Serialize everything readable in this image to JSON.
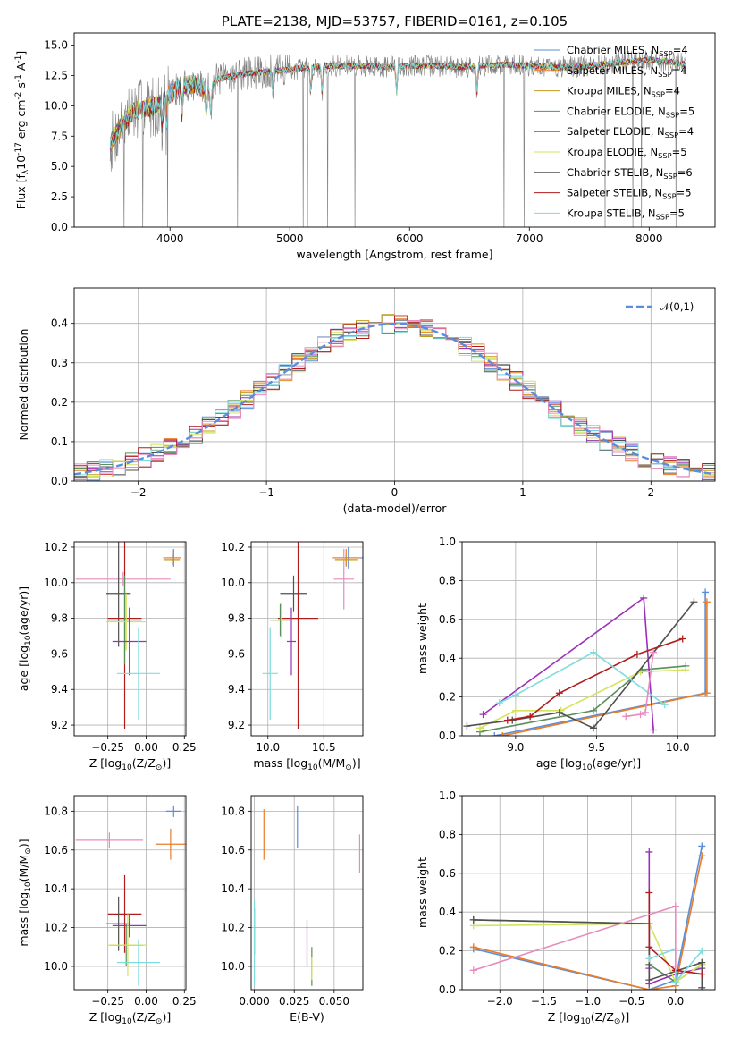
{
  "chart_data": [
    {
      "id": "spectrum",
      "type": "line",
      "title": "PLATE=2138, MJD=53757, FIBERID=0161, z=0.105",
      "xlabel": "wavelength [Angstrom, rest frame]",
      "ylabel": "Flux [f$_\\lambda$10$^{-17}$ erg cm$^{-2}$ s$^{-1}$ A$^{-1}$]",
      "xlim": [
        3200,
        8550
      ],
      "ylim": [
        0,
        16
      ],
      "xticks": [
        4000,
        5000,
        6000,
        7000,
        8000
      ],
      "yticks": [
        0.0,
        2.5,
        5.0,
        7.5,
        10.0,
        12.5,
        15.0
      ],
      "grid": false,
      "legend_position": "right",
      "continuum_profile": {
        "x": [
          3500,
          3600,
          3700,
          3800,
          3900,
          4000,
          4100,
          4200,
          4300,
          4400,
          4600,
          4800,
          5000,
          5200,
          5400,
          5600,
          5800,
          6000,
          6200,
          6400,
          6600,
          6800,
          7000,
          7200,
          7400,
          7600,
          7800,
          8000,
          8200,
          8300
        ],
        "y": [
          6.8,
          8.5,
          9.6,
          9.8,
          10.1,
          11.0,
          11.6,
          11.8,
          11.3,
          12.2,
          12.6,
          12.8,
          13.0,
          13.2,
          13.3,
          13.3,
          13.2,
          13.3,
          13.3,
          13.2,
          13.3,
          13.4,
          13.3,
          13.2,
          13.2,
          13.4,
          13.6,
          13.8,
          13.6,
          13.4
        ]
      },
      "data_range": [
        3500,
        8300
      ],
      "series": [
        {
          "name": "Chabrier MILES, N$_{SSP}$=4",
          "color": "#5b8ddb"
        },
        {
          "name": "Salpeter MILES, N$_{SSP}$=4",
          "color": "#e87d2a"
        },
        {
          "name": "Kroupa MILES, N$_{SSP}$=4",
          "color": "#c39a1c"
        },
        {
          "name": "Chabrier ELODIE, N$_{SSP}$=5",
          "color": "#5a8f5a"
        },
        {
          "name": "Salpeter ELODIE, N$_{SSP}$=4",
          "color": "#9b30b8"
        },
        {
          "name": "Kroupa ELODIE, N$_{SSP}$=5",
          "color": "#d4e35c"
        },
        {
          "name": "Chabrier STELIB, N$_{SSP}$=6",
          "color": "#505050"
        },
        {
          "name": "Salpeter STELIB, N$_{SSP}$=5",
          "color": "#b01c1c"
        },
        {
          "name": "Kroupa STELIB, N$_{SSP}$=5",
          "color": "#7fdcdc"
        }
      ],
      "data_color": "#808080"
    },
    {
      "id": "residuals",
      "type": "line",
      "xlabel": "(data-model)/error",
      "ylabel": "Normed distribution",
      "xlim": [
        -2.5,
        2.5
      ],
      "ylim": [
        0,
        0.49
      ],
      "xticks": [
        -2,
        -1,
        0,
        1,
        2
      ],
      "yticks": [
        0.0,
        0.1,
        0.2,
        0.3,
        0.4
      ],
      "grid": true,
      "legend_position": "top-right",
      "legend": "$\\mathcal{N}(0,1)$",
      "gaussian_color": "#5b8ddb",
      "bin_width": 0.1,
      "histogram_colors": [
        "#5b8ddb",
        "#e87d2a",
        "#c39a1c",
        "#5a8f5a",
        "#9b30b8",
        "#d4e35c",
        "#505050",
        "#b01c1c",
        "#7fdcdc",
        "#e88bc0"
      ]
    },
    {
      "id": "age_vs_Z",
      "type": "scatter",
      "xlabel": "Z [log$_{10}$(Z/Z$_\\odot$)]",
      "ylabel": "age  [log$_{10}$(age/yr)]",
      "xlim": [
        -0.47,
        0.26
      ],
      "ylim": [
        9.14,
        10.23
      ],
      "xticks": [
        -0.25,
        0.0,
        0.25
      ],
      "yticks": [
        9.2,
        9.4,
        9.6,
        9.8,
        10.0,
        10.2
      ],
      "grid": true,
      "points": [
        {
          "x": 0.18,
          "y": 10.14,
          "xerr": 0.05,
          "yerr": 0.05,
          "color": "#5b8ddb"
        },
        {
          "x": 0.17,
          "y": 10.14,
          "xerr": 0.06,
          "yerr": 0.04,
          "color": "#e87d2a"
        },
        {
          "x": 0.17,
          "y": 10.13,
          "xerr": 0.05,
          "yerr": 0.03,
          "color": "#c39a1c"
        },
        {
          "x": -0.15,
          "y": 10.02,
          "xerr": 0.31,
          "yerr": 0.04,
          "color": "#e88bc0"
        },
        {
          "x": -0.18,
          "y": 9.94,
          "xerr": 0.08,
          "yerr": 0.3,
          "color": "#505050"
        },
        {
          "x": -0.14,
          "y": 9.8,
          "xerr": 0.11,
          "yerr": 0.62,
          "color": "#b01c1c"
        },
        {
          "x": -0.14,
          "y": 9.79,
          "xerr": 0.11,
          "yerr": 0.25,
          "color": "#5a8f5a"
        },
        {
          "x": -0.13,
          "y": 9.78,
          "xerr": 0.13,
          "yerr": 0.16,
          "color": "#d4e35c"
        },
        {
          "x": -0.11,
          "y": 9.67,
          "xerr": 0.11,
          "yerr": 0.19,
          "color": "#9b30b8"
        },
        {
          "x": -0.05,
          "y": 9.49,
          "xerr": 0.14,
          "yerr": 0.26,
          "color": "#7fdcdc"
        }
      ]
    },
    {
      "id": "age_vs_mass",
      "type": "scatter",
      "xlabel": "mass [log$_{10}$(M/M$_\\odot$)]",
      "ylabel": "",
      "xlim": [
        9.85,
        10.85
      ],
      "ylim": [
        9.14,
        10.23
      ],
      "xticks": [
        10.0,
        10.5
      ],
      "yticks": [
        9.2,
        9.4,
        9.6,
        9.8,
        10.0,
        10.2
      ],
      "grid": true,
      "points": [
        {
          "x": 10.72,
          "y": 10.14,
          "xerr": 0.13,
          "yerr": 0.06,
          "color": "#5b8ddb"
        },
        {
          "x": 10.7,
          "y": 10.14,
          "xerr": 0.12,
          "yerr": 0.05,
          "color": "#e87d2a"
        },
        {
          "x": 10.7,
          "y": 10.13,
          "xerr": 0.1,
          "yerr": 0.03,
          "color": "#c39a1c"
        },
        {
          "x": 10.68,
          "y": 10.02,
          "xerr": 0.09,
          "yerr": 0.17,
          "color": "#e88bc0"
        },
        {
          "x": 10.23,
          "y": 9.94,
          "xerr": 0.12,
          "yerr": 0.1,
          "color": "#505050"
        },
        {
          "x": 10.27,
          "y": 9.8,
          "xerr": 0.18,
          "yerr": 0.62,
          "color": "#b01c1c"
        },
        {
          "x": 10.11,
          "y": 9.79,
          "xerr": 0.09,
          "yerr": 0.09,
          "color": "#5a8f5a"
        },
        {
          "x": 10.12,
          "y": 9.79,
          "xerr": 0.07,
          "yerr": 0.1,
          "color": "#d4e35c"
        },
        {
          "x": 10.21,
          "y": 9.67,
          "xerr": 0.04,
          "yerr": 0.19,
          "color": "#9b30b8"
        },
        {
          "x": 10.02,
          "y": 9.49,
          "xerr": 0.07,
          "yerr": 0.26,
          "color": "#7fdcdc"
        }
      ]
    },
    {
      "id": "weight_vs_age",
      "type": "line",
      "xlabel": "age  [log$_{10}$(age/yr)]",
      "ylabel": "mass weight",
      "xlim": [
        8.67,
        10.23
      ],
      "ylim": [
        0,
        1
      ],
      "xticks": [
        9.0,
        9.5,
        10.0
      ],
      "yticks": [
        0.0,
        0.2,
        0.4,
        0.6,
        0.8,
        1.0
      ],
      "grid": true,
      "series": [
        {
          "color": "#5b8ddb",
          "x": [
            8.87,
            10.17,
            10.17
          ],
          "y": [
            0.0,
            0.22,
            0.74
          ]
        },
        {
          "color": "#e87d2a",
          "x": [
            8.92,
            10.18,
            10.18
          ],
          "y": [
            0.0,
            0.22,
            0.69
          ]
        },
        {
          "color": "#5a8f5a",
          "x": [
            8.78,
            9.48,
            9.78,
            10.05
          ],
          "y": [
            0.02,
            0.13,
            0.34,
            0.36
          ]
        },
        {
          "color": "#9b30b8",
          "x": [
            8.8,
            9.79,
            9.85
          ],
          "y": [
            0.11,
            0.71,
            0.03
          ]
        },
        {
          "color": "#d4e35c",
          "x": [
            8.78,
            9.0,
            9.28,
            9.77,
            10.05
          ],
          "y": [
            0.04,
            0.13,
            0.13,
            0.33,
            0.34
          ]
        },
        {
          "color": "#505050",
          "x": [
            8.7,
            8.98,
            9.27,
            9.48,
            10.1
          ],
          "y": [
            0.05,
            0.08,
            0.12,
            0.04,
            0.69
          ]
        },
        {
          "color": "#b01c1c",
          "x": [
            8.95,
            9.09,
            9.27,
            9.75,
            10.03
          ],
          "y": [
            0.08,
            0.1,
            0.22,
            0.42,
            0.5
          ]
        },
        {
          "color": "#7fdcdc",
          "x": [
            8.9,
            9.0,
            9.48,
            9.92
          ],
          "y": [
            0.17,
            0.21,
            0.43,
            0.16
          ]
        },
        {
          "color": "#e88bc0",
          "x": [
            9.68,
            9.77,
            9.8,
            9.85
          ],
          "y": [
            0.1,
            0.11,
            0.12,
            0.43
          ]
        }
      ]
    },
    {
      "id": "mass_vs_Z",
      "type": "scatter",
      "xlabel": "Z [log$_{10}$(Z/Z$_\\odot$)]",
      "ylabel": "mass [log$_{10}$(M/M$_\\odot$)]",
      "xlim": [
        -0.47,
        0.26
      ],
      "ylim": [
        9.88,
        10.88
      ],
      "xticks": [
        -0.25,
        0.0,
        0.25
      ],
      "yticks": [
        10.0,
        10.2,
        10.4,
        10.6,
        10.8
      ],
      "grid": true,
      "points": [
        {
          "x": 0.18,
          "y": 10.8,
          "xerr": 0.05,
          "yerr": 0.03,
          "color": "#5b8ddb"
        },
        {
          "x": 0.16,
          "y": 10.63,
          "xerr": 0.1,
          "yerr": 0.08,
          "color": "#e87d2a"
        },
        {
          "x": -0.24,
          "y": 10.65,
          "xerr": 0.22,
          "yerr": 0.04,
          "color": "#e88bc0"
        },
        {
          "x": -0.14,
          "y": 10.27,
          "xerr": 0.11,
          "yerr": 0.2,
          "color": "#b01c1c"
        },
        {
          "x": -0.18,
          "y": 10.22,
          "xerr": 0.08,
          "yerr": 0.14,
          "color": "#505050"
        },
        {
          "x": -0.11,
          "y": 10.21,
          "xerr": 0.11,
          "yerr": 0.06,
          "color": "#9b30b8"
        },
        {
          "x": -0.13,
          "y": 10.11,
          "xerr": 0.11,
          "yerr": 0.11,
          "color": "#5a8f5a"
        },
        {
          "x": -0.12,
          "y": 10.11,
          "xerr": 0.13,
          "yerr": 0.16,
          "color": "#d4e35c"
        },
        {
          "x": -0.05,
          "y": 10.02,
          "xerr": 0.14,
          "yerr": 0.12,
          "color": "#7fdcdc"
        }
      ]
    },
    {
      "id": "mass_vs_EBV",
      "type": "scatter",
      "xlabel": "E(B-V)",
      "ylabel": "",
      "xlim": [
        -0.002,
        0.068
      ],
      "ylim": [
        9.88,
        10.88
      ],
      "xticks": [
        0.0,
        0.025,
        0.05
      ],
      "yticks": [
        10.0,
        10.2,
        10.4,
        10.6,
        10.8
      ],
      "grid": true,
      "points": [
        {
          "x": 0.027,
          "y": 10.72,
          "yerr": 0.11,
          "color": "#5b8ddb"
        },
        {
          "x": 0.006,
          "y": 10.68,
          "yerr": 0.13,
          "color": "#e87d2a"
        },
        {
          "x": 0.066,
          "y": 10.58,
          "yerr": 0.1,
          "color": "#e88bc0"
        },
        {
          "x": 0.0,
          "y": 10.18,
          "yerr": 0.12,
          "color": "#b01c1c"
        },
        {
          "x": 0.0,
          "y": 10.12,
          "yerr": 0.22,
          "color": "#7fdcdc"
        },
        {
          "x": 0.033,
          "y": 10.12,
          "yerr": 0.12,
          "color": "#9b30b8"
        },
        {
          "x": 0.036,
          "y": 10.0,
          "yerr": 0.1,
          "color": "#5a8f5a"
        },
        {
          "x": 0.036,
          "y": 9.99,
          "yerr": 0.06,
          "color": "#d4e35c"
        }
      ]
    },
    {
      "id": "weight_vs_Z",
      "type": "line",
      "xlabel": "Z [log$_{10}$(Z/Z$_\\odot$)]",
      "ylabel": "mass weight",
      "xlim": [
        -2.43,
        0.45
      ],
      "ylim": [
        0,
        1
      ],
      "xticks": [
        -2.0,
        -1.5,
        -1.0,
        -0.5,
        0.0
      ],
      "yticks": [
        0.0,
        0.2,
        0.4,
        0.6,
        0.8,
        1.0
      ],
      "grid": true,
      "series": [
        {
          "color": "#5b8ddb",
          "x": [
            -2.3,
            -0.3,
            0.0,
            0.3
          ],
          "y": [
            0.21,
            0.0,
            0.05,
            0.74
          ]
        },
        {
          "color": "#e87d2a",
          "x": [
            -2.3,
            -0.3,
            0.0,
            0.3
          ],
          "y": [
            0.22,
            0.0,
            0.02,
            0.69
          ]
        },
        {
          "color": "#5a8f5a",
          "x": [
            -2.3,
            -0.3,
            -0.3,
            0.0,
            0.3
          ],
          "y": [
            0.36,
            0.34,
            0.13,
            0.04,
            0.13
          ]
        },
        {
          "color": "#9b30b8",
          "x": [
            -0.3,
            -0.3,
            -0.3,
            0.0,
            0.3
          ],
          "y": [
            0.71,
            0.11,
            0.03,
            0.08,
            0.11
          ]
        },
        {
          "color": "#d4e35c",
          "x": [
            -2.3,
            -0.3,
            0.0,
            0.3
          ],
          "y": [
            0.33,
            0.34,
            0.04,
            0.13
          ]
        },
        {
          "color": "#505050",
          "x": [
            -2.3,
            -0.3,
            -0.3,
            0.3,
            0.3
          ],
          "y": [
            0.36,
            0.34,
            0.05,
            0.14,
            0.01
          ]
        },
        {
          "color": "#b01c1c",
          "x": [
            -0.3,
            -0.3,
            0.0,
            0.3
          ],
          "y": [
            0.5,
            0.22,
            0.1,
            0.08
          ]
        },
        {
          "color": "#7fdcdc",
          "x": [
            -0.3,
            0.0,
            0.0,
            0.3
          ],
          "y": [
            0.16,
            0.21,
            0.04,
            0.2
          ]
        },
        {
          "color": "#e88bc0",
          "x": [
            -2.3,
            0.0,
            0.0
          ],
          "y": [
            0.1,
            0.43,
            0.12
          ]
        }
      ]
    }
  ]
}
